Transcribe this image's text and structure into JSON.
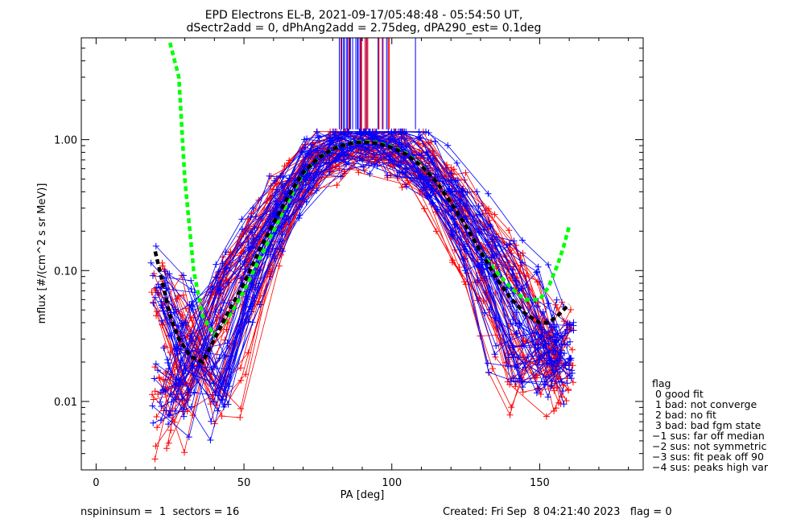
{
  "chart_data": {
    "type": "line",
    "title": "EPD Electrons EL-B, 2021-09-17/05:48:48 - 05:54:50 UT,",
    "subtitle": "dSectr2add = 0, dPhAng2add = 2.75deg, dPA290_est=   0.1deg",
    "xlabel": "PA [deg]",
    "ylabel": "mflux [#/(cm^2 s sr MeV)]",
    "xlim": [
      -5,
      185
    ],
    "ylim": [
      0.003,
      6.0
    ],
    "yscale": "log",
    "x_ticks": [
      0,
      50,
      100,
      150
    ],
    "x_tick_labels": [
      "0",
      "50",
      "100",
      "150"
    ],
    "y_ticks": [
      0.01,
      0.1,
      1.0
    ],
    "y_tick_labels": [
      "0.01",
      "0.10",
      "1.00"
    ],
    "series": [
      {
        "name": "green fit",
        "color": "#00ff00",
        "style": "dashed",
        "x": [
          25,
          28,
          30,
          33,
          36,
          40,
          45,
          50,
          55,
          60,
          65,
          70,
          75,
          80,
          85,
          90,
          95,
          100,
          105,
          110,
          115,
          120,
          125,
          130,
          135,
          140,
          145,
          150,
          153,
          156,
          158,
          160
        ],
        "y": [
          5.5,
          3.0,
          0.5,
          0.1,
          0.045,
          0.032,
          0.045,
          0.07,
          0.12,
          0.2,
          0.34,
          0.55,
          0.72,
          0.85,
          0.93,
          0.97,
          0.95,
          0.88,
          0.78,
          0.64,
          0.48,
          0.33,
          0.22,
          0.14,
          0.1,
          0.075,
          0.06,
          0.06,
          0.075,
          0.11,
          0.15,
          0.22
        ]
      },
      {
        "name": "black fit",
        "color": "#000000",
        "style": "dashed",
        "x": [
          20,
          22,
          25,
          28,
          32,
          36,
          40,
          45,
          50,
          55,
          60,
          65,
          70,
          75,
          80,
          85,
          90,
          95,
          100,
          105,
          110,
          115,
          120,
          125,
          130,
          135,
          140,
          145,
          150,
          153,
          156,
          158,
          160
        ],
        "y": [
          0.14,
          0.09,
          0.045,
          0.03,
          0.022,
          0.02,
          0.03,
          0.05,
          0.08,
          0.14,
          0.23,
          0.37,
          0.56,
          0.72,
          0.85,
          0.93,
          0.96,
          0.94,
          0.87,
          0.77,
          0.63,
          0.48,
          0.33,
          0.22,
          0.14,
          0.09,
          0.062,
          0.047,
          0.04,
          0.04,
          0.045,
          0.05,
          0.055
        ]
      }
    ],
    "profiles": {
      "colors": [
        "#ff0000",
        "#0000ff"
      ],
      "marker": "+",
      "count_per_color": 45
    }
  },
  "legend": {
    "title": "flag",
    "items": [
      " 0 good fit",
      " 1 bad: not converge",
      " 2 bad: no fit",
      " 3 bad: bad fgm state",
      "−1 sus: far off median",
      "−2 sus: not symmetric",
      "−3 sus: fit peak off 90",
      "−4 sus: peaks high var"
    ]
  },
  "footer": {
    "left": "nspininsum =  1  sectors = 16",
    "right": "Created: Fri Sep  8 04:21:40 2023   flag = 0"
  }
}
